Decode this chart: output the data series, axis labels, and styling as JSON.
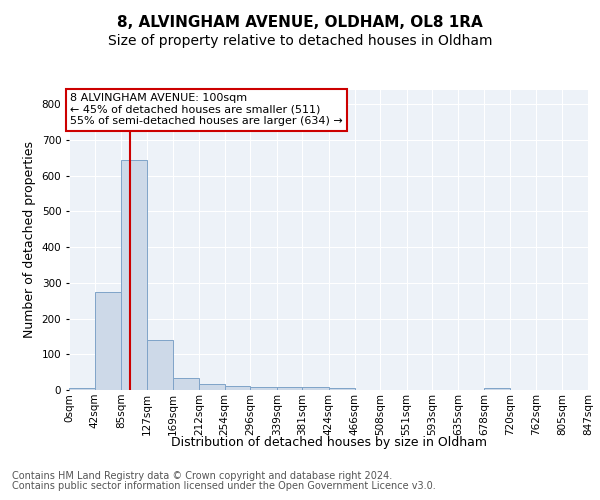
{
  "title_line1": "8, ALVINGHAM AVENUE, OLDHAM, OL8 1RA",
  "title_line2": "Size of property relative to detached houses in Oldham",
  "xlabel": "Distribution of detached houses by size in Oldham",
  "ylabel": "Number of detached properties",
  "footer1": "Contains HM Land Registry data © Crown copyright and database right 2024.",
  "footer2": "Contains public sector information licensed under the Open Government Licence v3.0.",
  "annotation_line1": "8 ALVINGHAM AVENUE: 100sqm",
  "annotation_line2": "← 45% of detached houses are smaller (511)",
  "annotation_line3": "55% of semi-detached houses are larger (634) →",
  "property_size": 100,
  "red_line_x": 100,
  "bin_edges": [
    0,
    42,
    85,
    127,
    169,
    212,
    254,
    296,
    339,
    381,
    424,
    466,
    508,
    551,
    593,
    635,
    678,
    720,
    762,
    805,
    847
  ],
  "bar_heights": [
    5,
    275,
    645,
    140,
    33,
    18,
    12,
    9,
    8,
    8,
    5,
    0,
    0,
    0,
    0,
    0,
    5,
    0,
    0,
    0
  ],
  "bar_color": "#cdd9e8",
  "bar_edge_color": "#7fa3c8",
  "red_line_color": "#cc0000",
  "plot_bg_color": "#edf2f8",
  "ylim_max": 840,
  "yticks": [
    0,
    100,
    200,
    300,
    400,
    500,
    600,
    700,
    800
  ],
  "grid_color": "#ffffff",
  "title_fontsize": 11,
  "subtitle_fontsize": 10,
  "axis_label_fontsize": 9,
  "tick_fontsize": 7.5,
  "footer_fontsize": 7,
  "ann_fontsize": 8
}
